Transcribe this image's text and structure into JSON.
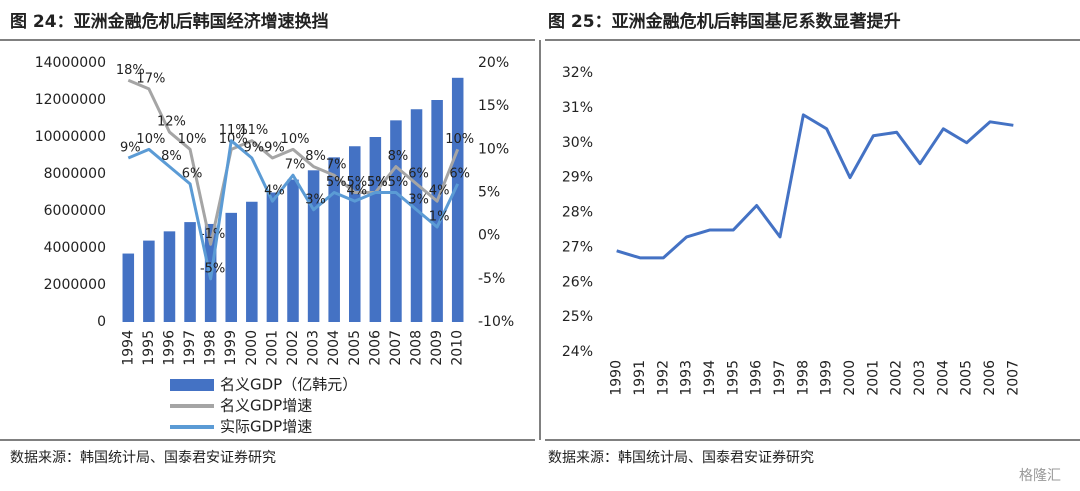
{
  "chart_data": [
    {
      "type": "combo",
      "title": "图 24：亚洲金融危机后韩国经济增速换挡",
      "source": "数据来源：韩国统计局、国泰君安证券研究",
      "categories": [
        "1994",
        "1995",
        "1996",
        "1997",
        "1998",
        "1999",
        "2000",
        "2001",
        "2002",
        "2003",
        "2004",
        "2005",
        "2006",
        "2007",
        "2008",
        "2009",
        "2010"
      ],
      "series": [
        {
          "name": "名义GDP（亿韩元）",
          "type": "bar",
          "color": "#4472c4",
          "values": [
            3700000,
            4400000,
            4900000,
            5400000,
            5300000,
            5900000,
            6500000,
            7000000,
            7700000,
            8200000,
            8900000,
            9500000,
            10000000,
            10900000,
            11500000,
            12000000,
            13200000
          ]
        },
        {
          "name": "名义GDP增速",
          "type": "line",
          "color": "#a5a5a5",
          "axis": "y2",
          "values": [
            18,
            17,
            12,
            10,
            -1,
            10,
            11,
            9,
            10,
            8,
            7,
            5,
            5,
            8,
            6,
            4,
            10
          ],
          "value_labels": [
            "18%",
            "17%",
            "12%",
            "10%",
            "-1%",
            "10%",
            "11%",
            "9%",
            "10%",
            "8%",
            "7%",
            "5%",
            "5%",
            "8%",
            "6%",
            "4%",
            "10%"
          ]
        },
        {
          "name": "实际GDP增速",
          "type": "line",
          "color": "#5b9bd5",
          "axis": "y2",
          "values": [
            9,
            10,
            8,
            6,
            -5,
            11,
            9,
            4,
            7,
            3,
            5,
            4,
            5,
            5,
            3,
            1,
            6
          ],
          "value_labels": [
            "9%",
            "10%",
            "8%",
            "6%",
            "-5%",
            "11%",
            "9%",
            "4%",
            "7%",
            "3%",
            "5%",
            "4%",
            "5%",
            "5%",
            "3%",
            "1%",
            "6%"
          ]
        }
      ],
      "ylim": [
        0,
        14000000
      ],
      "yticks": [
        0,
        2000000,
        4000000,
        6000000,
        8000000,
        10000000,
        12000000,
        14000000
      ],
      "y2lim": [
        -10,
        20
      ],
      "y2ticks": [
        {
          "value": -10,
          "label": "-10%"
        },
        {
          "value": -5,
          "label": "-5%"
        },
        {
          "value": 0,
          "label": "0%"
        },
        {
          "value": 5,
          "label": "5%"
        },
        {
          "value": 10,
          "label": "10%"
        },
        {
          "value": 15,
          "label": "15%"
        },
        {
          "value": 20,
          "label": "20%"
        }
      ],
      "legend": "bottom"
    },
    {
      "type": "line",
      "title": "图 25：亚洲金融危机后韩国基尼系数显著提升",
      "source": "数据来源：韩国统计局、国泰君安证券研究",
      "categories": [
        "1990",
        "1991",
        "1992",
        "1993",
        "1994",
        "1995",
        "1996",
        "1997",
        "1998",
        "1999",
        "2000",
        "2001",
        "2002",
        "2003",
        "2004",
        "2005",
        "2006",
        "2007"
      ],
      "series": [
        {
          "color": "#4472c4",
          "values": [
            26.9,
            26.7,
            26.7,
            27.3,
            27.5,
            27.5,
            28.2,
            27.3,
            30.8,
            30.4,
            29.0,
            30.2,
            30.3,
            29.4,
            30.4,
            30.0,
            30.6,
            30.5
          ]
        }
      ],
      "ylim": [
        24,
        32
      ],
      "yticks": [
        {
          "value": 24,
          "label": "24%"
        },
        {
          "value": 25,
          "label": "25%"
        },
        {
          "value": 26,
          "label": "26%"
        },
        {
          "value": 27,
          "label": "27%"
        },
        {
          "value": 28,
          "label": "28%"
        },
        {
          "value": 29,
          "label": "29%"
        },
        {
          "value": 30,
          "label": "30%"
        },
        {
          "value": 31,
          "label": "31%"
        },
        {
          "value": 32,
          "label": "32%"
        }
      ]
    }
  ],
  "watermark": "格隆汇"
}
